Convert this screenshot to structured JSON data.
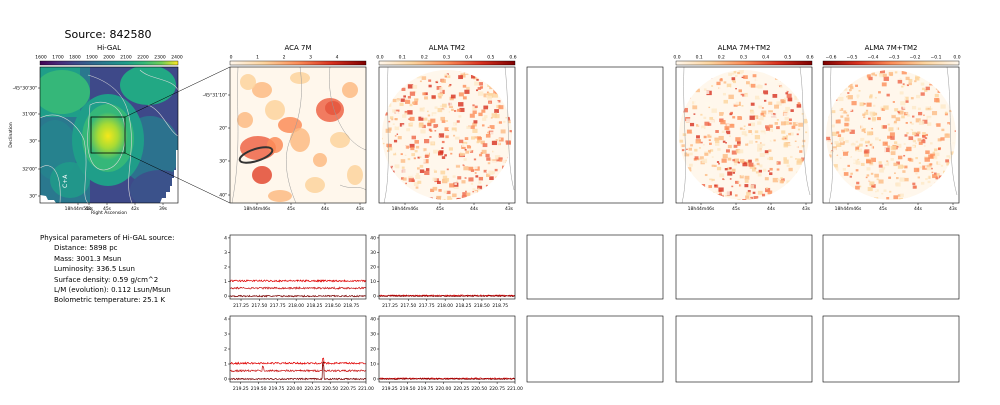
{
  "source_title": "Source: 842580",
  "params": {
    "heading": "Physical parameters of Hi-GAL source:",
    "lines": [
      "Distance: 5898 pc",
      "Mass: 3001.3 Msun",
      "Luminosity: 336.5 Lsun",
      "Surface density: 0.59 g/cm^2",
      "L/M (evolution): 0.112 Lsun/Msun",
      "Bolometric temperature: 25.1 K"
    ]
  },
  "chart_data": [
    {
      "type": "heatmap",
      "title": "Hi-GAL",
      "colormap": "viridis",
      "colorbar_ticks": [
        "1600",
        "1700",
        "1800",
        "1900",
        "2000",
        "2100",
        "2200",
        "2300",
        "2400"
      ],
      "xlabel": "Right Ascension",
      "ylabel": "Declination",
      "xticks": [
        "18h44m51s",
        "48s",
        "45s",
        "42s",
        "39s"
      ],
      "yticks": [
        "-45°30'30\"",
        "31'00\"",
        "30\"",
        "32'00\"",
        "30\""
      ],
      "annotations": [
        "box marking zoomed region",
        "contours"
      ]
    },
    {
      "type": "heatmap",
      "title": "ACA 7M",
      "colormap": "OrRd",
      "colorbar_ticks": [
        "0",
        "1",
        "2",
        "3",
        "4"
      ],
      "xticks": [
        "18h44m46s",
        "45s",
        "44s",
        "43s"
      ],
      "yticks": [
        "-45°31'10\"",
        "20\"",
        "30\"",
        "40\""
      ],
      "annotations": [
        "beam ellipse"
      ]
    },
    {
      "type": "heatmap",
      "title": "ALMA TM2",
      "colormap": "OrRd",
      "colorbar_ticks": [
        "0.0",
        "0.1",
        "0.2",
        "0.3",
        "0.4",
        "0.5",
        "0.6"
      ],
      "xticks": [
        "18h44m46s",
        "45s",
        "44s",
        "43s"
      ]
    },
    {
      "type": "heatmap",
      "title": "ALMA 7M+TM2",
      "colormap": "OrRd",
      "colorbar_ticks": [
        "0.0",
        "0.1",
        "0.2",
        "0.3",
        "0.4",
        "0.5",
        "0.6"
      ],
      "xticks": [
        "18h44m46s",
        "45s",
        "44s",
        "43s"
      ]
    },
    {
      "type": "heatmap",
      "title": "ALMA 7M+TM2",
      "colormap": "OrRd",
      "colorbar_ticks": [
        "−0.6",
        "−0.5",
        "−0.4",
        "−0.3",
        "−0.2",
        "−0.1",
        "0.0"
      ],
      "xticks": [
        "18h44m46s",
        "45s",
        "44s",
        "43s"
      ]
    },
    {
      "type": "line",
      "panel": "ACA 7M spectrum, upper window",
      "xlim": [
        217.1,
        218.95
      ],
      "ylim": [
        -0.2,
        4.2
      ],
      "xticks": [
        "217.25",
        "217.50",
        "217.75",
        "218.00",
        "218.25",
        "218.50",
        "218.75"
      ],
      "yticks": [
        "0",
        "1",
        "2",
        "3",
        "4"
      ],
      "series": [
        {
          "color": "#e00000",
          "level": 1.05,
          "noise": 0.06
        },
        {
          "color": "#c81414",
          "level": 0.55,
          "noise": 0.06
        },
        {
          "color": "#7a0000",
          "level": 0.0,
          "noise": 0.05
        }
      ]
    },
    {
      "type": "line",
      "panel": "ALMA TM2 spectrum, upper window",
      "xlim": [
        217.1,
        218.95
      ],
      "ylim": [
        -2,
        42
      ],
      "xticks": [
        "217.25",
        "217.50",
        "217.75",
        "218.00",
        "218.25",
        "218.50",
        "218.75"
      ],
      "yticks": [
        "0",
        "10",
        "20",
        "30",
        "40"
      ],
      "series": [
        {
          "color": "#e00000",
          "level": 0.4,
          "noise": 0.35
        },
        {
          "color": "#7a0000",
          "level": 0.0,
          "noise": 0.35
        }
      ]
    },
    {
      "type": "line",
      "panel": "ACA 7M spectrum, lower window",
      "xlim": [
        219.1,
        221.0
      ],
      "ylim": [
        -0.2,
        4.2
      ],
      "xticks": [
        "219.25",
        "219.50",
        "219.75",
        "220.00",
        "220.25",
        "220.50",
        "220.75",
        "221.00"
      ],
      "yticks": [
        "0",
        "1",
        "2",
        "3",
        "4"
      ],
      "series": [
        {
          "color": "#e00000",
          "level": 1.05,
          "noise": 0.06,
          "peaks": [
            [
              220.4,
              0.35
            ]
          ]
        },
        {
          "color": "#c81414",
          "level": 0.55,
          "noise": 0.06,
          "peaks": [
            [
              219.56,
              0.25
            ],
            [
              220.4,
              0.4
            ]
          ]
        },
        {
          "color": "#7a0000",
          "level": 0.0,
          "noise": 0.05,
          "peaks": [
            [
              220.4,
              1.1
            ]
          ]
        }
      ]
    },
    {
      "type": "line",
      "panel": "ALMA TM2 spectrum, lower window",
      "xlim": [
        219.1,
        221.0
      ],
      "ylim": [
        -2,
        42
      ],
      "xticks": [
        "219.25",
        "219.50",
        "219.75",
        "220.00",
        "220.25",
        "220.50",
        "220.75",
        "221.00"
      ],
      "yticks": [
        "0",
        "10",
        "20",
        "30",
        "40"
      ],
      "series": [
        {
          "color": "#e00000",
          "level": 0.4,
          "noise": 0.35
        },
        {
          "color": "#7a0000",
          "level": 0.0,
          "noise": 0.35
        }
      ]
    }
  ]
}
